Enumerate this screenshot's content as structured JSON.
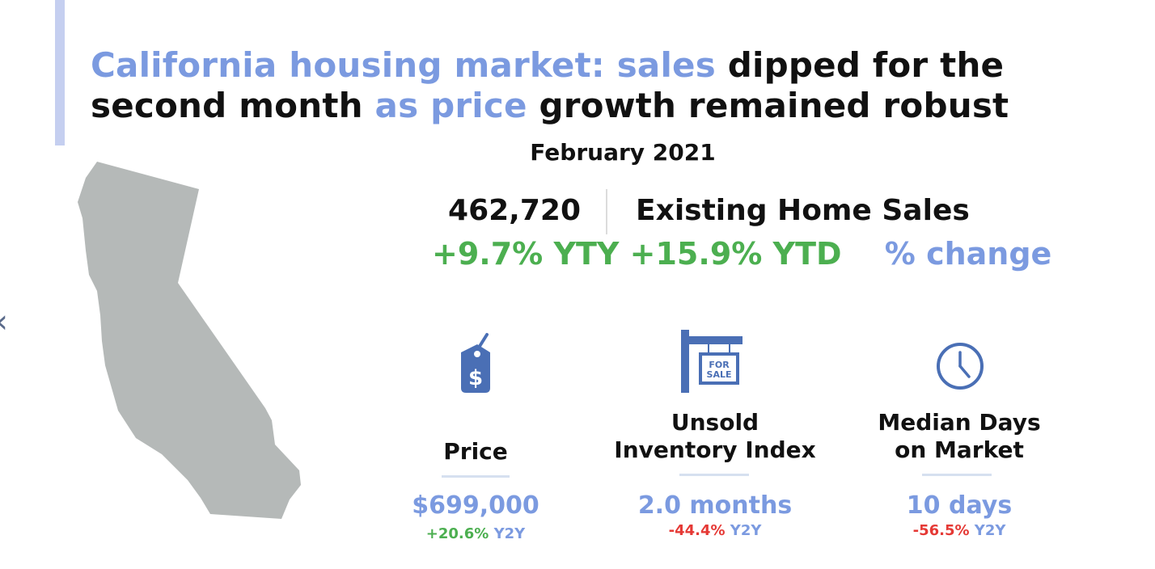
{
  "title": {
    "part1": "California housing market: sales",
    "part2": " dipped for the",
    "part3": "second month ",
    "part4": "as price",
    "part5": " growth remained robust"
  },
  "date": "February 2021",
  "sales": {
    "value": "462,720",
    "label": "Existing Home Sales",
    "yty": "+9.7% YTY",
    "ytd": "+15.9% YTD",
    "change_label": "% change"
  },
  "metrics": [
    {
      "icon": "price-tag-icon",
      "label": "Price",
      "value": "$699,000",
      "change": "+20.6%",
      "suffix": " Y2Y",
      "change_color": "#4caf50"
    },
    {
      "icon": "for-sale-sign-icon",
      "label_line1": "Unsold",
      "label_line2": "Inventory Index",
      "value": "2.0 months",
      "change": "-44.4%",
      "suffix": " Y2Y",
      "change_color": "#e53935"
    },
    {
      "icon": "clock-icon",
      "label_line1": "Median Days",
      "label_line2": "on Market",
      "value": "10 days",
      "change": "-56.5%",
      "suffix": " Y2Y",
      "change_color": "#e53935"
    }
  ],
  "icon_sign_text": {
    "line1": "FOR",
    "line2": "SALE"
  },
  "colors": {
    "accent_blue": "#7b9ae0",
    "icon_blue": "#4a6fb5",
    "map_gray": "#b5b9b8",
    "positive": "#4caf50",
    "negative": "#e53935"
  }
}
